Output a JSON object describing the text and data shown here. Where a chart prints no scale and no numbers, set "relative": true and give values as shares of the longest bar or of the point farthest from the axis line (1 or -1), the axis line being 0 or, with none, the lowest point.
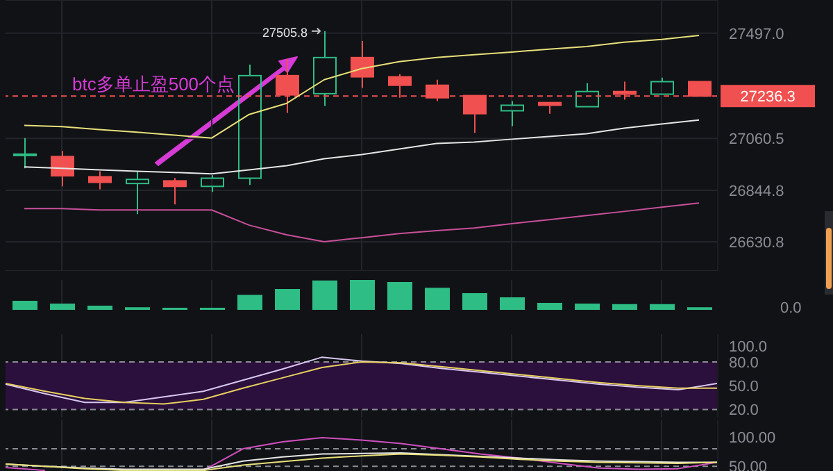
{
  "chart_data": [
    {
      "type": "candlestick",
      "categories": [
        null,
        null,
        null,
        null,
        null,
        null,
        null,
        null,
        null,
        null,
        null,
        null,
        null,
        null,
        null,
        null,
        null,
        null,
        null
      ],
      "ohlc": [
        [
          26990,
          27062,
          26936,
          26995
        ],
        [
          26985,
          27008,
          26861,
          26905
        ],
        [
          26901,
          26924,
          26849,
          26878
        ],
        [
          26873,
          26924,
          26746,
          26890
        ],
        [
          26884,
          26896,
          26786,
          26861
        ],
        [
          26861,
          26907,
          26838,
          26895
        ],
        [
          26895,
          27367,
          26867,
          27321
        ],
        [
          27321,
          27390,
          27166,
          27241
        ],
        [
          27246,
          27505.8,
          27195,
          27396
        ],
        [
          27396,
          27465,
          27270,
          27316
        ],
        [
          27316,
          27327,
          27229,
          27281
        ],
        [
          27281,
          27304,
          27215,
          27229
        ],
        [
          27238,
          27238,
          27083,
          27163
        ],
        [
          27175,
          27215,
          27111,
          27198
        ],
        [
          27209,
          27209,
          27163,
          27198
        ],
        [
          27192,
          27290,
          27192,
          27255
        ],
        [
          27255,
          27296,
          27221,
          27244
        ],
        [
          27244,
          27313,
          27244,
          27296
        ],
        [
          27296,
          27296,
          27236.3,
          27236.3
        ]
      ],
      "colors": [
        "#2ebd85",
        "#f0504f",
        "#f0504f",
        "#2ebd85",
        "#f0504f",
        "#2ebd85",
        "#2ebd85",
        "#f0504f",
        "#2ebd85",
        "#f0504f",
        "#f0504f",
        "#f0504f",
        "#f0504f",
        "#2ebd85",
        "#f0504f",
        "#2ebd85",
        "#f0504f",
        "#2ebd85",
        "#f0504f"
      ],
      "series": [
        {
          "type": "line",
          "color": "#e8e07a",
          "values": [
            27114,
            27109,
            27097,
            27086,
            27074,
            27062,
            27160,
            27206,
            27304,
            27350,
            27379,
            27396,
            27408,
            27419,
            27431,
            27442,
            27460,
            27471,
            27488
          ]
        },
        {
          "type": "line",
          "color": "#e6e6e6",
          "values": [
            26942,
            26936,
            26930,
            26924,
            26919,
            26913,
            26930,
            26947,
            26976,
            26993,
            27016,
            27039,
            27045,
            27057,
            27068,
            27080,
            27103,
            27120,
            27137
          ]
        },
        {
          "type": "line",
          "color": "#c8509a",
          "values": [
            26769,
            26769,
            26763,
            26763,
            26763,
            26763,
            26700,
            26660,
            26631,
            26648,
            26665,
            26677,
            26688,
            26706,
            26723,
            26740,
            26757,
            26775,
            26792
          ]
        }
      ],
      "ylim": [
        26510,
        27635
      ],
      "yticks": [
        {
          "value": 26630.8,
          "label": "26630.8"
        },
        {
          "value": 26844.8,
          "label": "26844.8"
        },
        {
          "value": 27060.5,
          "label": "27060.5"
        },
        {
          "value": 27497,
          "label": "27497.0"
        }
      ],
      "grid": true,
      "ref_lines": [
        {
          "axis": "y",
          "value": 27236.3,
          "label": "27236.3",
          "color": "#f0504f",
          "line_style": "dashed"
        }
      ],
      "annotations": [
        "btc多单止盈500个点",
        "27505.8"
      ]
    },
    {
      "type": "bar",
      "categories": [
        null,
        null,
        null,
        null,
        null,
        null,
        null,
        null,
        null,
        null,
        null,
        null,
        null,
        null,
        null,
        null,
        null,
        null,
        null
      ],
      "values": [
        0.3,
        0.21,
        0.14,
        0.09,
        0.07,
        0.07,
        0.5,
        0.7,
        0.98,
        1,
        0.93,
        0.74,
        0.56,
        0.42,
        0.23,
        0.21,
        0.19,
        0.19,
        0.09
      ],
      "color": "#2ebd85",
      "relative": true,
      "grid": "x",
      "annotations": [
        "0.0"
      ]
    },
    {
      "type": "line",
      "categories": [
        null,
        null,
        null,
        null,
        null,
        null,
        null,
        null,
        null,
        null,
        null,
        null,
        null,
        null,
        null,
        null,
        null,
        null,
        null
      ],
      "series": [
        {
          "color": "#d8c8f0",
          "values": [
            52,
            40,
            29,
            29,
            36,
            43,
            57,
            71,
            86,
            81,
            78,
            72,
            67,
            62,
            57,
            52,
            48,
            45,
            53
          ]
        },
        {
          "color": "#e8d060",
          "values": [
            53,
            43,
            34,
            29,
            27,
            33,
            47,
            60,
            73,
            80,
            79,
            74,
            69,
            64,
            59,
            54,
            50,
            47,
            47
          ]
        }
      ],
      "ylim": [
        10,
        115
      ],
      "yticks": [
        {
          "value": 20,
          "label": "20.0"
        },
        {
          "value": 50,
          "label": "50.0"
        },
        {
          "value": 80,
          "label": "80.0"
        },
        {
          "value": 100,
          "label": "100.0"
        }
      ],
      "bands": [
        {
          "axis": "y",
          "from": 20,
          "to": 80,
          "color": "#2b0f3c"
        }
      ],
      "ref_lines": [
        {
          "axis": "y",
          "value": 80,
          "line_style": "dashed",
          "color": "#8a8d93"
        },
        {
          "axis": "y",
          "value": 20,
          "line_style": "dashed",
          "color": "#8a8d93"
        }
      ],
      "grid": "x"
    },
    {
      "type": "line",
      "categories": [
        null,
        null,
        null,
        null,
        null,
        null,
        null,
        null,
        null,
        null,
        null,
        null,
        null,
        null,
        null,
        null,
        null,
        null,
        null
      ],
      "series": [
        {
          "color": "#d050c0",
          "values": [
            48,
            43,
            null,
            null,
            null,
            43,
            80,
            92,
            99,
            95,
            89,
            80,
            71,
            64,
            55,
            47,
            45,
            46,
            57
          ]
        },
        {
          "color": "#e6e6e6",
          "values": [
            54,
            50,
            47,
            45,
            45,
            45,
            59,
            66,
            71,
            72,
            73,
            70,
            67,
            64,
            61,
            59,
            58,
            57,
            57
          ]
        },
        {
          "color": "#e8e07a",
          "values": [
            54,
            50,
            46,
            43,
            43,
            43,
            52,
            58,
            64,
            68,
            71,
            69,
            66,
            62,
            59,
            57,
            56,
            55,
            57
          ]
        }
      ],
      "ylim": [
        42,
        130
      ],
      "yticks": [
        {
          "value": 50,
          "label": "50.00"
        },
        {
          "value": 100,
          "label": "100.00"
        }
      ],
      "ref_lines": [
        {
          "axis": "y",
          "value": 80,
          "line_style": "dashed",
          "color": "#8a8d93"
        },
        {
          "axis": "y",
          "value": 50,
          "line_style": "dashed",
          "color": "#8a8d93"
        }
      ],
      "grid": "x"
    }
  ]
}
